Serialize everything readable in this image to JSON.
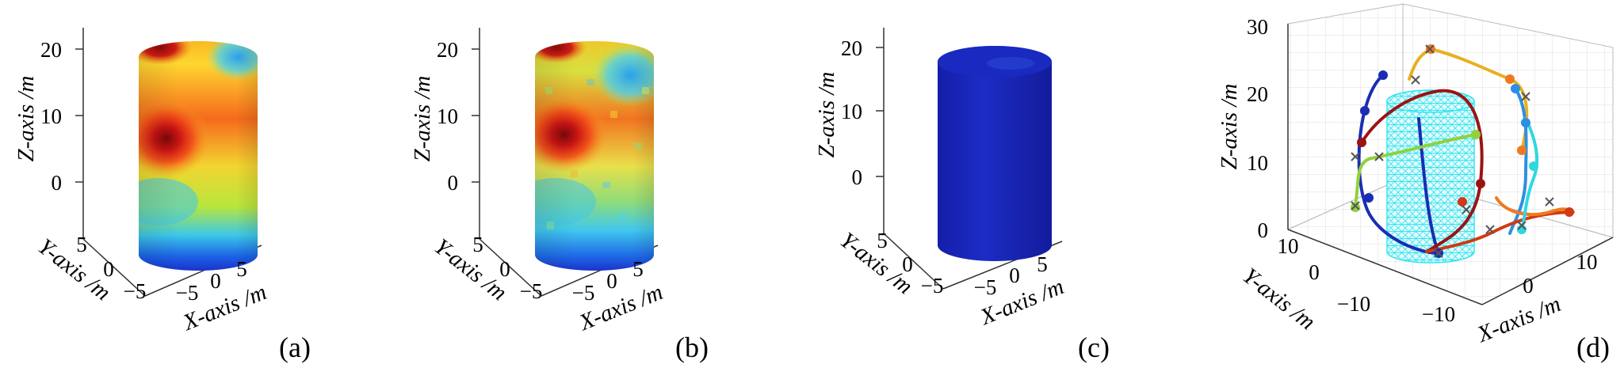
{
  "panels": [
    {
      "label": "(a)",
      "zlabel": "Z-axis /m",
      "xlabel": "X-axis /m",
      "ylabel": "Y-axis /m",
      "ticks": {
        "z": [
          "0",
          "10",
          "20"
        ],
        "y": [
          "5",
          "0",
          "−5"
        ],
        "x": [
          "−5",
          "0",
          "5"
        ]
      },
      "colormap": "jet"
    },
    {
      "label": "(b)",
      "zlabel": "Z-axis /m",
      "xlabel": "X-axis /m",
      "ylabel": "Y-axis /m",
      "ticks": {
        "z": [
          "0",
          "10",
          "20"
        ],
        "y": [
          "5",
          "0",
          "−5"
        ],
        "x": [
          "−5",
          "0",
          "5"
        ]
      },
      "colormap": "jet"
    },
    {
      "label": "(c)",
      "zlabel": "Z-axis /m",
      "xlabel": "X-axis /m",
      "ylabel": "Y-axis /m",
      "ticks": {
        "z": [
          "0",
          "10",
          "20"
        ],
        "y": [
          "5",
          "0",
          "−5"
        ],
        "x": [
          "−5",
          "0",
          "5"
        ]
      },
      "colormap": "jet"
    },
    {
      "label": "(d)",
      "zlabel": "Z-axis /m",
      "xlabel": "X-axis /m",
      "ylabel": "Y-axis /m",
      "ticks": {
        "z": [
          "0",
          "10",
          "20",
          "30"
        ],
        "y": [
          "10",
          "0",
          "−10"
        ],
        "x": [
          "−10",
          "0",
          "10"
        ]
      },
      "mesh_color": "#33e6f0",
      "trajectory_colors": [
        "#1a2db4",
        "#e8b020",
        "#2e8fe0",
        "#9a1414",
        "#8fd23c",
        "#d03a14",
        "#ef7a1e",
        "#2fd8e0"
      ]
    }
  ],
  "chart_data": [
    {
      "type": "3d-surface",
      "panel": "(a)",
      "surface": "cylinder",
      "axes": {
        "x": [
          -8,
          8
        ],
        "y": [
          -8,
          8
        ],
        "z": [
          0,
          24
        ]
      },
      "zticks": [
        0,
        10,
        20
      ],
      "xticks": [
        -5,
        0,
        5
      ],
      "yticks": [
        -5,
        0,
        5
      ],
      "colormap": "jet",
      "hot_spots": [
        {
          "desc": "red maximum",
          "z": 11,
          "level": 1.0
        },
        {
          "desc": "dark red at top rim",
          "z": 24,
          "level": 0.95
        },
        {
          "desc": "cyan region near top",
          "z": 22,
          "level": 0.35
        },
        {
          "desc": "blue band near base",
          "z": 1,
          "level": 0.1
        }
      ],
      "xlabel": "X-axis /m",
      "ylabel": "Y-axis /m",
      "zlabel": "Z-axis /m"
    },
    {
      "type": "3d-surface",
      "panel": "(b)",
      "surface": "cylinder",
      "axes": {
        "x": [
          -8,
          8
        ],
        "y": [
          -8,
          8
        ],
        "z": [
          0,
          24
        ]
      },
      "zticks": [
        0,
        10,
        20
      ],
      "xticks": [
        -5,
        0,
        5
      ],
      "yticks": [
        -5,
        0,
        5
      ],
      "colormap": "jet",
      "note_visual": "noisy version of (a)",
      "xlabel": "X-axis /m",
      "ylabel": "Y-axis /m",
      "zlabel": "Z-axis /m"
    },
    {
      "type": "3d-surface",
      "panel": "(c)",
      "surface": "cylinder",
      "axes": {
        "x": [
          -8,
          8
        ],
        "y": [
          -8,
          8
        ],
        "z": [
          0,
          24
        ]
      },
      "zticks": [
        0,
        10,
        20
      ],
      "xticks": [
        -5,
        0,
        5
      ],
      "yticks": [
        -5,
        0,
        5
      ],
      "colormap": "jet",
      "uniform_level": 0.05,
      "xlabel": "X-axis /m",
      "ylabel": "Y-axis /m",
      "zlabel": "Z-axis /m"
    },
    {
      "type": "3d-line",
      "panel": "(d)",
      "axes": {
        "x": [
          -15,
          15
        ],
        "y": [
          -15,
          15
        ],
        "z": [
          0,
          30
        ]
      },
      "zticks": [
        0,
        10,
        20,
        30
      ],
      "xticks": [
        -10,
        0,
        10
      ],
      "yticks": [
        -10,
        0,
        10
      ],
      "mesh": "cylinder",
      "grid": true,
      "xlabel": "X-axis /m",
      "ylabel": "Y-axis /m",
      "zlabel": "Z-axis /m"
    }
  ]
}
